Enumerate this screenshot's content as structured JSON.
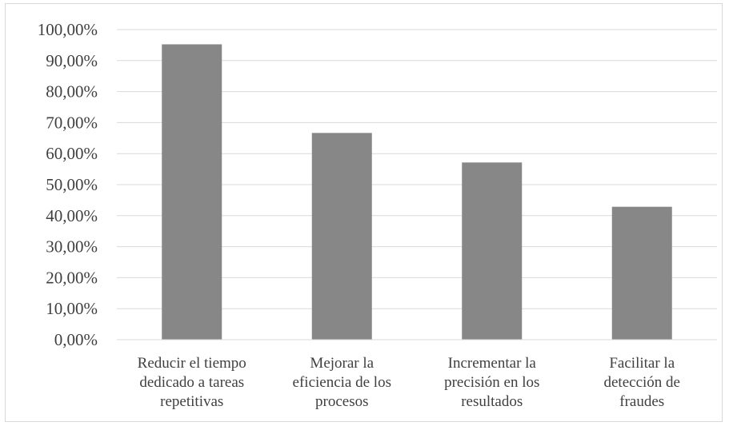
{
  "chart_data": {
    "type": "bar",
    "title": "",
    "xlabel": "",
    "ylabel": "",
    "categories": [
      "Reducir el tiempo dedicado a tareas repetitivas",
      "Mejorar la eficiencia de los procesos",
      "Incrementar la precisión en los resultados",
      "Facilitar la detección de fraudes"
    ],
    "category_lines": [
      [
        "Reducir el tiempo",
        "dedicado a tareas",
        "repetitivas"
      ],
      [
        "Mejorar la",
        "eficiencia de los",
        "procesos"
      ],
      [
        "Incrementar la",
        "precisión en los",
        "resultados"
      ],
      [
        "Facilitar la",
        "detección de",
        "fraudes"
      ]
    ],
    "values": [
      95.24,
      66.67,
      57.14,
      42.86
    ],
    "ylim": [
      0,
      100
    ],
    "yticks": [
      0,
      10,
      20,
      30,
      40,
      50,
      60,
      70,
      80,
      90,
      100
    ],
    "ytick_labels": [
      "0,00%",
      "10,00%",
      "20,00%",
      "30,00%",
      "40,00%",
      "50,00%",
      "60,00%",
      "70,00%",
      "80,00%",
      "90,00%",
      "100,00%"
    ],
    "grid": true,
    "legend": "none",
    "colors": {
      "bar": "#878787",
      "grid": "#d9d9d9",
      "text": "#404040"
    }
  }
}
